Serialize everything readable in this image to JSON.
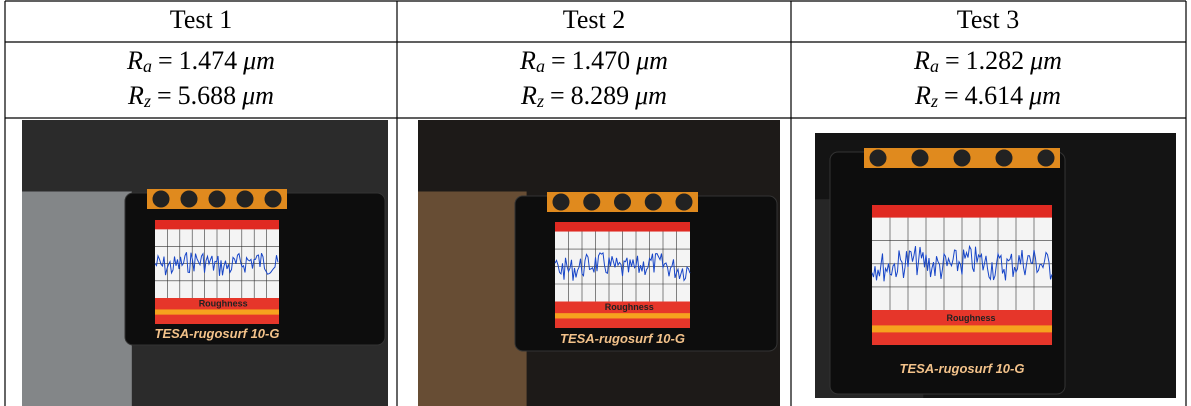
{
  "table": {
    "header": [
      "Test 1",
      "Test 2",
      "Test 3"
    ],
    "rows": [
      [
        {
          "ra": {
            "symbol": "R",
            "sub": "a",
            "eq": "=",
            "value": "1.474",
            "unit": "μm"
          },
          "rz": {
            "symbol": "R",
            "sub": "z",
            "eq": "=",
            "value": "5.688",
            "unit": "μm"
          }
        },
        {
          "ra": {
            "symbol": "R",
            "sub": "a",
            "eq": "=",
            "value": "1.470",
            "unit": "μm"
          },
          "rz": {
            "symbol": "R",
            "sub": "z",
            "eq": "=",
            "value": "8.289",
            "unit": "μm"
          }
        },
        {
          "ra": {
            "symbol": "R",
            "sub": "a",
            "eq": "=",
            "value": "1.282",
            "unit": "μm"
          },
          "rz": {
            "symbol": "R",
            "sub": "z",
            "eq": "=",
            "value": "4.614",
            "unit": "μm"
          }
        }
      ],
      [
        {
          "mode": "Roughness",
          "brand": "TESA-rugosurf 10-G"
        },
        {
          "mode": "Roughness",
          "brand": "TESA-rugosurf 10-G"
        },
        {
          "mode": "Roughness",
          "brand": "TESA-rugosurf 10-G"
        }
      ]
    ]
  }
}
